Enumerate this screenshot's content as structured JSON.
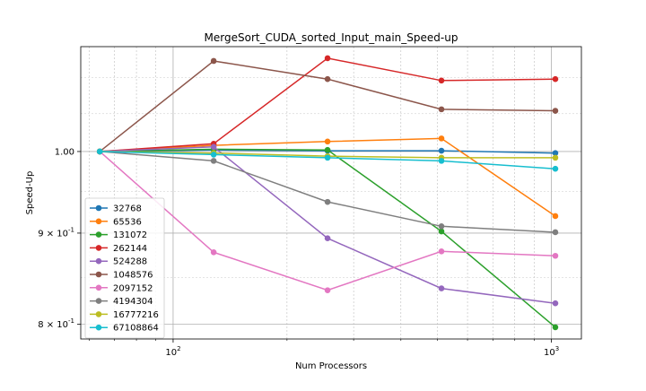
{
  "chart_data": {
    "type": "line",
    "title": "MergeSort_CUDA_sorted_Input_main_Speed-up",
    "xlabel": "Num Processors",
    "ylabel": "Speed-Up",
    "xscale": "log",
    "yscale": "log",
    "xlim": [
      57,
      1200
    ],
    "ylim": [
      0.785,
      1.145
    ],
    "x": [
      64,
      128,
      256,
      512,
      1024
    ],
    "xticks": [
      {
        "value": 100,
        "label": "10^2"
      },
      {
        "value": 1000,
        "label": "10^3"
      }
    ],
    "yticks": [
      {
        "value": 0.8,
        "label": "8 × 10^-1"
      },
      {
        "value": 0.9,
        "label": "9 × 10^-1"
      },
      {
        "value": 1.0,
        "label": "1.00"
      }
    ],
    "grid": true,
    "legend_position": "lower-left",
    "series": [
      {
        "name": "32768",
        "color": "#1f77b4",
        "values": [
          1.0,
          1.002,
          1.001,
          1.001,
          0.998
        ]
      },
      {
        "name": "65536",
        "color": "#ff7f0e",
        "values": [
          1.0,
          1.008,
          1.013,
          1.017,
          0.92
        ]
      },
      {
        "name": "131072",
        "color": "#2ca02c",
        "values": [
          1.0,
          1.003,
          1.002,
          0.902,
          0.797
        ]
      },
      {
        "name": "262144",
        "color": "#d62728",
        "values": [
          1.0,
          1.01,
          1.128,
          1.096,
          1.098
        ]
      },
      {
        "name": "524288",
        "color": "#9467bd",
        "values": [
          1.0,
          1.006,
          0.894,
          0.838,
          0.822
        ]
      },
      {
        "name": "1048576",
        "color": "#8c564b",
        "values": [
          1.0,
          1.124,
          1.098,
          1.056,
          1.054
        ]
      },
      {
        "name": "2097152",
        "color": "#e377c2",
        "values": [
          1.0,
          0.878,
          0.836,
          0.879,
          0.874
        ]
      },
      {
        "name": "4194304",
        "color": "#7f7f7f",
        "values": [
          1.0,
          0.988,
          0.937,
          0.908,
          0.901
        ]
      },
      {
        "name": "16777216",
        "color": "#bcbd22",
        "values": [
          1.0,
          0.998,
          0.994,
          0.992,
          0.992
        ]
      },
      {
        "name": "67108864",
        "color": "#17becf",
        "values": [
          1.0,
          0.996,
          0.992,
          0.988,
          0.978
        ]
      }
    ]
  }
}
